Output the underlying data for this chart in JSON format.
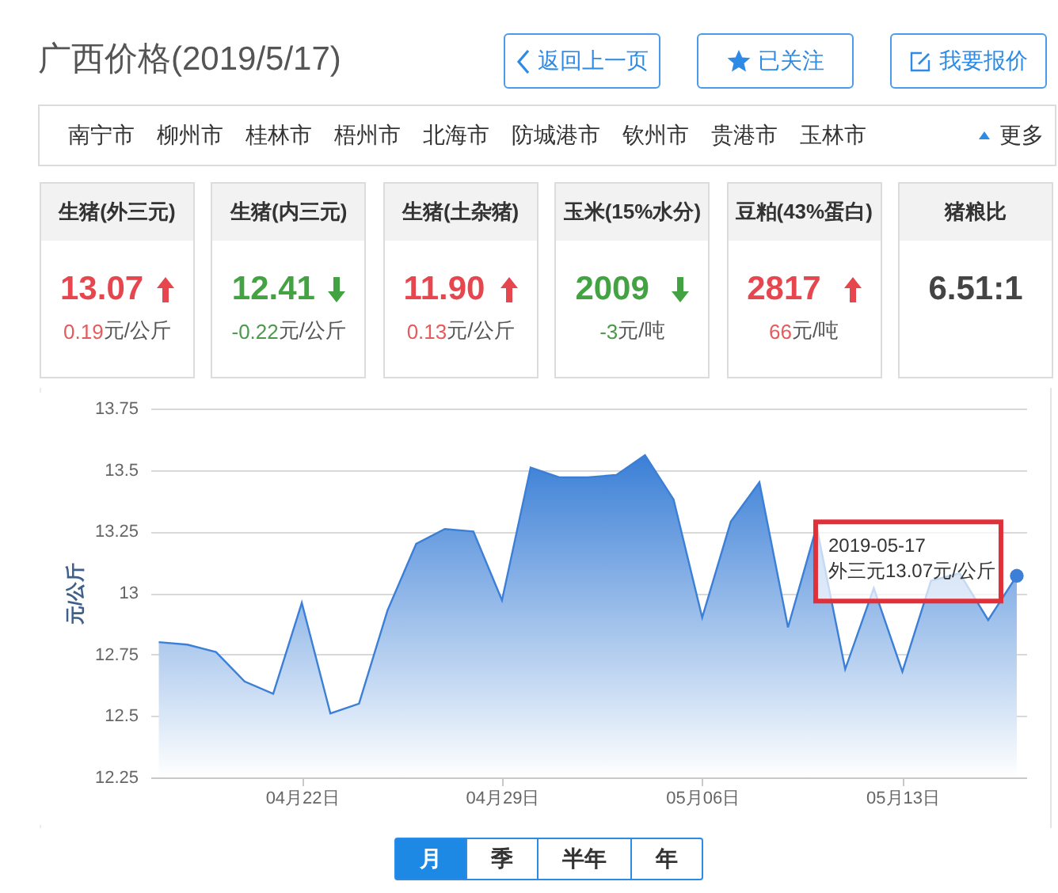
{
  "chart_data": [
    {
      "type": "other",
      "title": "广西价格(2019/5/17)",
      "annotations": [
        "返回上一页",
        "已关注",
        "我要报价"
      ]
    },
    {
      "type": "other",
      "annotations": [
        "南宁市",
        "柳州市",
        "桂林市",
        "梧州市",
        "北海市",
        "防城港市",
        "钦州市",
        "贵港市",
        "玉林市",
        "更多"
      ]
    },
    {
      "type": "other",
      "title": "生猪(外三元)",
      "annotations": [
        "13.07",
        "0.19元/公斤"
      ]
    },
    {
      "type": "other",
      "title": "生猪(内三元)",
      "annotations": [
        "12.41",
        "-0.22元/公斤"
      ]
    },
    {
      "type": "other",
      "title": "生猪(土杂猪)",
      "annotations": [
        "11.90",
        "0.13元/公斤"
      ]
    },
    {
      "type": "other",
      "title": "玉米(15%水分)",
      "annotations": [
        "2009",
        "-3元/吨"
      ]
    },
    {
      "type": "other",
      "title": "豆粕(43%蛋白)",
      "annotations": [
        "2817",
        "66元/吨"
      ]
    },
    {
      "type": "other",
      "title": "猪粮比",
      "annotations": [
        "6.51:1"
      ]
    },
    {
      "type": "area",
      "x": [
        "2019-04-17",
        "2019-04-18",
        "2019-04-19",
        "2019-04-20",
        "2019-04-21",
        "2019-04-22",
        "2019-04-23",
        "2019-04-24",
        "2019-04-25",
        "2019-04-26",
        "2019-04-27",
        "2019-04-28",
        "2019-04-29",
        "2019-04-30",
        "2019-05-01",
        "2019-05-02",
        "2019-05-03",
        "2019-05-04",
        "2019-05-05",
        "2019-05-06",
        "2019-05-07",
        "2019-05-08",
        "2019-05-09",
        "2019-05-10",
        "2019-05-11",
        "2019-05-12",
        "2019-05-13",
        "2019-05-14",
        "2019-05-15",
        "2019-05-16",
        "2019-05-17"
      ],
      "values": [
        12.8,
        12.79,
        12.76,
        12.64,
        12.59,
        12.96,
        12.51,
        12.55,
        12.93,
        13.2,
        13.26,
        13.25,
        12.97,
        13.51,
        13.47,
        13.47,
        13.48,
        13.56,
        13.38,
        12.9,
        13.29,
        13.45,
        12.86,
        13.27,
        12.69,
        13.02,
        12.68,
        13.05,
        13.08,
        12.89,
        13.07
      ],
      "color": "#3b7fd6",
      "xlim": [
        "2019-04-16T17:00",
        "2019-05-17T08:00"
      ],
      "xticks": [
        {
          "value": "2019-04-22",
          "label": "04月22日"
        },
        {
          "value": "2019-04-29",
          "label": "04月29日"
        },
        {
          "value": "2019-05-06",
          "label": "05月06日"
        },
        {
          "value": "2019-05-13",
          "label": "05月13日"
        }
      ],
      "ylim": [
        12.25,
        13.75
      ],
      "yticks": [
        12.25,
        12.5,
        12.75,
        13,
        13.25,
        13.5,
        13.75
      ],
      "ylabel": "元/公斤",
      "grid": "y",
      "annotations": [
        "月",
        "季",
        "半年",
        "年",
        {
          "text": "2019-05-17\n外三元13.07元/公斤",
          "x": "2019-05-17",
          "y": 13.07
        }
      ]
    }
  ]
}
